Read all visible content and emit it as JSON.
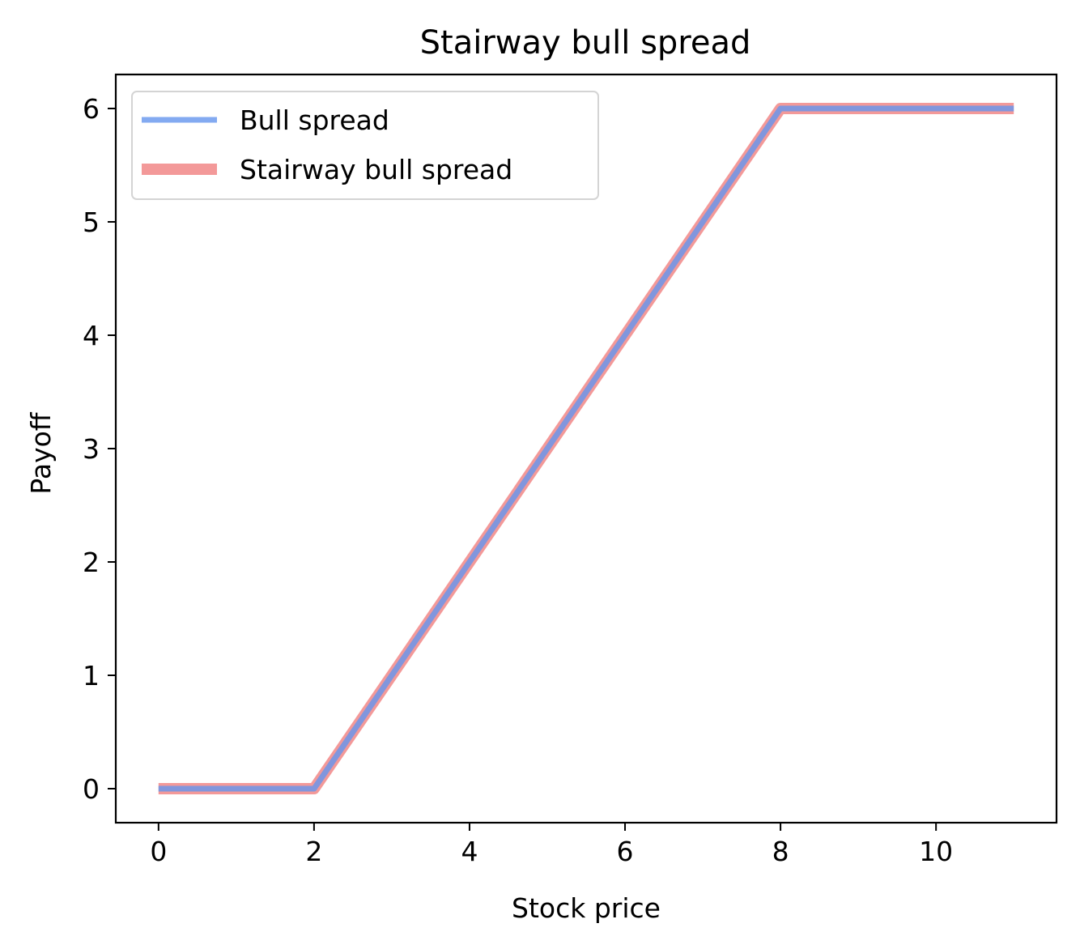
{
  "chart_data": {
    "type": "line",
    "title": "Stairway bull spread",
    "xlabel": "Stock price",
    "ylabel": "Payoff",
    "xlim": [
      -0.55,
      11.55
    ],
    "ylim": [
      -0.3,
      6.3
    ],
    "xticks": [
      0,
      2,
      4,
      6,
      8,
      10
    ],
    "yticks": [
      0,
      1,
      2,
      3,
      4,
      5,
      6
    ],
    "grid": false,
    "legend_position": "top-left",
    "series": [
      {
        "name": "Bull spread",
        "color": "#6495ed",
        "x": [
          0,
          2,
          8,
          11
        ],
        "y": [
          0,
          0,
          6,
          6
        ]
      },
      {
        "name": "Stairway bull spread",
        "color": "#f08080",
        "x": [
          0,
          2,
          8,
          11
        ],
        "y": [
          0,
          0,
          6,
          6
        ]
      }
    ]
  }
}
